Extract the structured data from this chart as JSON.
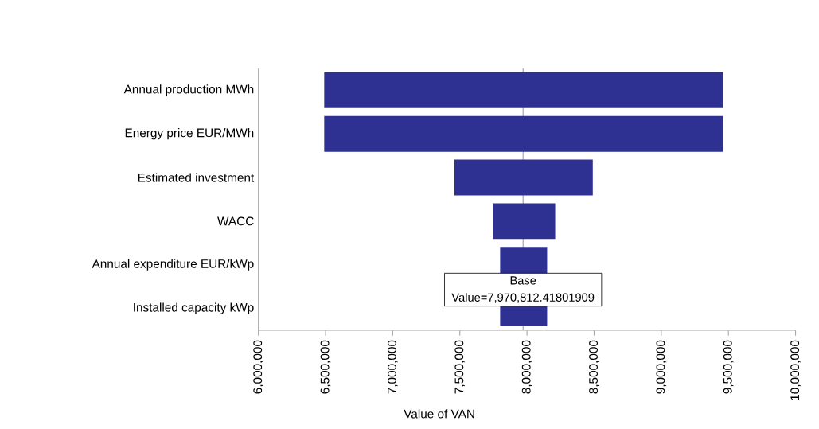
{
  "chart_data": {
    "type": "bar",
    "orientation": "horizontal",
    "xlabel": "Value of VAN",
    "categories": [
      "Annual production MWh",
      "Energy price EUR/MWh",
      "Estimated investment",
      "WACC",
      "Annual expenditure EUR/kWp",
      "Installed capacity kWp"
    ],
    "base": [
      6490000,
      6490000,
      7460000,
      7745000,
      7800000,
      7800000
    ],
    "values": [
      2970000,
      2970000,
      1030000,
      465000,
      350000,
      350000
    ],
    "color": "#2e3192",
    "xlim": [
      6000000,
      10000000
    ],
    "xticks": [
      {
        "value": 6000000,
        "label": "6,000,000"
      },
      {
        "value": 6500000,
        "label": "6,500,000"
      },
      {
        "value": 7000000,
        "label": "7,000,000"
      },
      {
        "value": 7500000,
        "label": "7,500,000"
      },
      {
        "value": 8000000,
        "label": "8,000,000"
      },
      {
        "value": 8500000,
        "label": "8,500,000"
      },
      {
        "value": 9000000,
        "label": "9,000,000"
      },
      {
        "value": 9500000,
        "label": "9,500,000"
      },
      {
        "value": 10000000,
        "label": "10,000,000"
      }
    ],
    "ref_lines": [
      {
        "axis": "x",
        "value": 7970812.41801909,
        "label": "Base Value=7,970,812.41801909"
      }
    ]
  }
}
